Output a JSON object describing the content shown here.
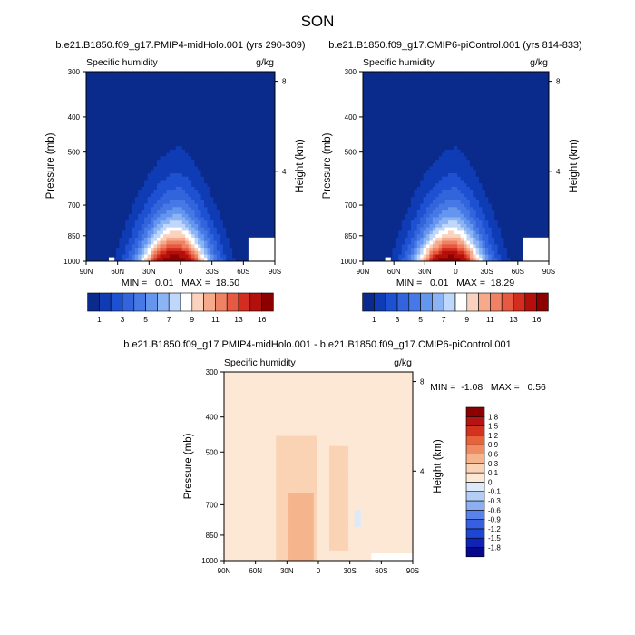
{
  "figure": {
    "title": "SON"
  },
  "chart_data": [
    {
      "type": "heatmap",
      "title": "b.e21.B1850.f09_g17.PMIP4-midHolo.001 (yrs 290-309)",
      "left_label": "Specific humidity",
      "right_label": "g/kg",
      "xlabel": "",
      "ylabel": "Pressure (mb)",
      "ylabel_right": "Height (km)",
      "x_ticks": [
        "90N",
        "60N",
        "30N",
        "0",
        "30S",
        "60S",
        "90S"
      ],
      "x_range": [
        90,
        -90
      ],
      "y_ticks": [
        300,
        400,
        500,
        700,
        850,
        1000
      ],
      "y_range": [
        300,
        1000
      ],
      "y_scale": "log",
      "right_ticks": [
        8,
        4
      ],
      "stats": "MIN =   0.01   MAX =  18.50",
      "min": 0.01,
      "max": 18.5,
      "grid": false,
      "colorbar": {
        "orientation": "horizontal",
        "levels": [
          1,
          2,
          3,
          4,
          5,
          6,
          7,
          8,
          9,
          10,
          11,
          12,
          13,
          14,
          16
        ],
        "labels": [
          "1",
          "3",
          "5",
          "7",
          "9",
          "11",
          "13",
          "16"
        ],
        "colors": [
          "#0a2a8c",
          "#0f3cb4",
          "#1e50d2",
          "#3264dc",
          "#4678e6",
          "#6496f0",
          "#8cb4f5",
          "#bed7fa",
          "#ffffff",
          "#fad2be",
          "#f5aa8c",
          "#f08264",
          "#e65a41",
          "#d22d1e",
          "#b40f0a",
          "#8c0000"
        ]
      }
    },
    {
      "type": "heatmap",
      "title": "b.e21.B1850.f09_g17.CMIP6-piControl.001 (yrs 814-833)",
      "left_label": "Specific humidity",
      "right_label": "g/kg",
      "xlabel": "",
      "ylabel": "Pressure (mb)",
      "ylabel_right": "Height (km)",
      "x_ticks": [
        "90N",
        "60N",
        "30N",
        "0",
        "30S",
        "60S",
        "90S"
      ],
      "x_range": [
        90,
        -90
      ],
      "y_ticks": [
        300,
        400,
        500,
        700,
        850,
        1000
      ],
      "y_range": [
        300,
        1000
      ],
      "y_scale": "log",
      "right_ticks": [
        8,
        4
      ],
      "stats": "MIN =   0.01   MAX =  18.29",
      "min": 0.01,
      "max": 18.29,
      "grid": false,
      "colorbar": {
        "orientation": "horizontal",
        "levels": [
          1,
          2,
          3,
          4,
          5,
          6,
          7,
          8,
          9,
          10,
          11,
          12,
          13,
          14,
          16
        ],
        "labels": [
          "1",
          "3",
          "5",
          "7",
          "9",
          "11",
          "13",
          "16"
        ],
        "colors": [
          "#0a2a8c",
          "#0f3cb4",
          "#1e50d2",
          "#3264dc",
          "#4678e6",
          "#6496f0",
          "#8cb4f5",
          "#bed7fa",
          "#ffffff",
          "#fad2be",
          "#f5aa8c",
          "#f08264",
          "#e65a41",
          "#d22d1e",
          "#b40f0a",
          "#8c0000"
        ]
      }
    },
    {
      "type": "heatmap",
      "title": "b.e21.B1850.f09_g17.PMIP4-midHolo.001 - b.e21.B1850.f09_g17.CMIP6-piControl.001",
      "left_label": "Specific humidity",
      "right_label": "g/kg",
      "xlabel": "",
      "ylabel": "Pressure (mb)",
      "ylabel_right": "Height (km)",
      "x_ticks": [
        "90N",
        "60N",
        "30N",
        "0",
        "30S",
        "60S",
        "90S"
      ],
      "x_range": [
        90,
        -90
      ],
      "y_ticks": [
        300,
        400,
        500,
        700,
        850,
        1000
      ],
      "y_range": [
        300,
        1000
      ],
      "y_scale": "log",
      "right_ticks": [
        8,
        4
      ],
      "stats": "MIN =  -1.08   MAX =   0.56",
      "min": -1.08,
      "max": 0.56,
      "grid": false,
      "colorbar": {
        "orientation": "vertical",
        "levels": [
          -1.8,
          -1.5,
          -1.2,
          -0.9,
          -0.6,
          -0.3,
          -0.1,
          0,
          0.1,
          0.3,
          0.6,
          0.9,
          1.2,
          1.5,
          1.8
        ],
        "labels": [
          "-1.8",
          "-1.5",
          "-1.2",
          "-0.9",
          "-0.6",
          "-0.3",
          "-0.1",
          "0",
          "0.1",
          "0.3",
          "0.6",
          "0.9",
          "1.2",
          "1.5",
          "1.8"
        ],
        "colors": [
          "#08088c",
          "#0f23b4",
          "#1e46d2",
          "#375fe1",
          "#5a82eb",
          "#8caff0",
          "#b4cdf5",
          "#dce9f8",
          "#fde8d6",
          "#fad2b4",
          "#f5b48c",
          "#f08c64",
          "#e6643c",
          "#d2321e",
          "#b41414",
          "#8c0000"
        ]
      }
    }
  ]
}
